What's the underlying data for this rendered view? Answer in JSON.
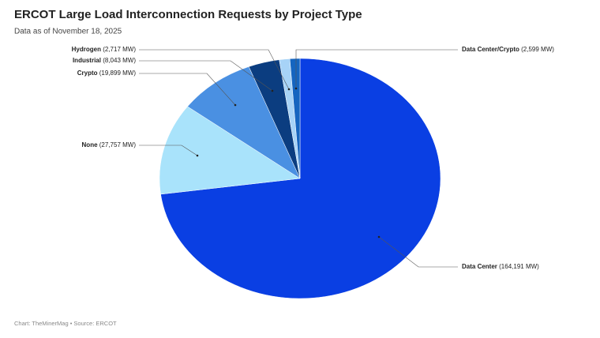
{
  "chart_data": {
    "type": "pie",
    "title": "ERCOT Large Load Interconnection Requests by Project Type",
    "subtitle": "Data as of November 18, 2025",
    "source": "Chart: TheMinerMag • Source: ERCOT",
    "categories": [
      "Data Center",
      "None",
      "Crypto",
      "Industrial",
      "Hydrogen",
      "Data Center/Crypto"
    ],
    "values": [
      164191,
      27757,
      19899,
      8043,
      2717,
      2599
    ],
    "value_labels": [
      "(164,191 MW)",
      "(27,757 MW)",
      "(19,899 MW)",
      "(8,043 MW)",
      "(2,717 MW)",
      "(2,599 MW)"
    ],
    "colors": [
      "#0a3fe3",
      "#a9e3fb",
      "#4a90e2",
      "#0b3d80",
      "#a7d3f7",
      "#1565c0"
    ]
  }
}
